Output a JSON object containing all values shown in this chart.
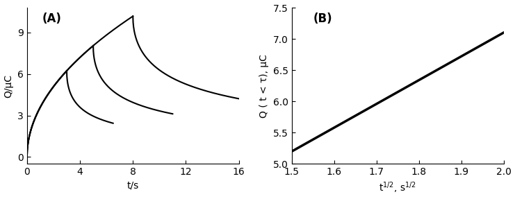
{
  "panel_A": {
    "label": "(A)",
    "xlabel": "t/s",
    "ylabel": "Q/μC",
    "xlim": [
      0,
      16
    ],
    "ylim": [
      -0.5,
      10.8
    ],
    "yticks": [
      0,
      3,
      6,
      9
    ],
    "xticks": [
      0,
      4,
      8,
      12,
      16
    ],
    "A": 3.6,
    "curves": [
      {
        "tau": 3.0,
        "t_end": 6.5
      },
      {
        "tau": 5.0,
        "t_end": 11.0
      },
      {
        "tau": 8.0,
        "t_end": 16.0
      }
    ]
  },
  "panel_B": {
    "label": "(B)",
    "xlabel": "t$^{1/2}$, s$^{1/2}$",
    "ylabel": "Q ( t < τ), μC",
    "xlim": [
      1.5,
      2.0
    ],
    "ylim": [
      5.0,
      7.5
    ],
    "yticks": [
      5.0,
      5.5,
      6.0,
      6.5,
      7.0,
      7.5
    ],
    "xticks": [
      1.5,
      1.6,
      1.7,
      1.8,
      1.9,
      2.0
    ],
    "line_x": [
      1.5,
      2.0
    ],
    "line_y": [
      5.2,
      7.1
    ]
  },
  "line_color": "#000000",
  "line_width": 1.5,
  "font_size": 10,
  "label_font_size": 12
}
